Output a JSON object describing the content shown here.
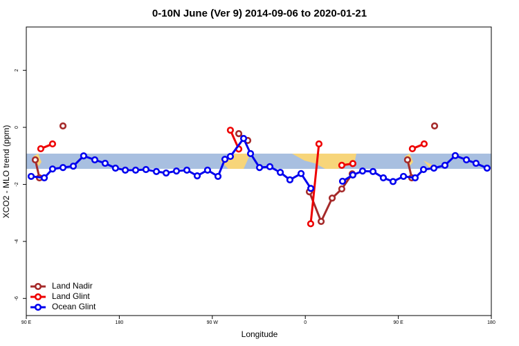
{
  "chart_data": {
    "type": "line",
    "title": "0-10N June (Ver 9)   2014-09-06 to 2020-01-21",
    "x_label": "Longitude",
    "y_label": "XCO2 - MLO trend (ppm)",
    "xlim": [
      90,
      540
    ],
    "ylim": [
      -6.6,
      3.52
    ],
    "xticks": [
      {
        "value": 90,
        "label": "90 E"
      },
      {
        "value": 180,
        "label": "180"
      },
      {
        "value": 270,
        "label": "90 W"
      },
      {
        "value": 360,
        "label": "0"
      },
      {
        "value": 450,
        "label": "90 E"
      },
      {
        "value": 540,
        "label": "180"
      }
    ],
    "yticks": [
      2,
      0,
      -2,
      -4,
      -6
    ],
    "legend": "bottom-left",
    "series": [
      {
        "name": "Land Nadir",
        "color": "#a52a2a",
        "x": [
          98.7,
          102.7,
          null,
          125.5,
          null,
          295.6,
          304.3,
          null,
          363.9,
          375.3,
          386,
          395.3,
          405.4,
          null,
          458.9,
          463,
          null,
          485.1
        ],
        "values": [
          -1.14,
          -1.77,
          null,
          0.05,
          null,
          -0.22,
          -0.46,
          null,
          -2.26,
          -3.3,
          -2.48,
          -2.16,
          -1.63,
          null,
          -1.14,
          -1.77,
          null,
          0.05
        ]
      },
      {
        "name": "Land Glint",
        "color": "#ee0000",
        "x": [
          104,
          115.4,
          null,
          287.5,
          295.6,
          null,
          365.2,
          373.2,
          null,
          395.3,
          406,
          null,
          463.6,
          475
        ],
        "values": [
          -0.75,
          -0.58,
          null,
          -0.1,
          -0.76,
          null,
          -3.38,
          -0.58,
          null,
          -1.33,
          -1.27,
          null,
          -0.75,
          -0.58
        ]
      },
      {
        "name": "Ocean Glint",
        "color": "#0000ee",
        "x": [
          94.7,
          107.4,
          115.4,
          125.5,
          135.5,
          145.5,
          156.3,
          166.3,
          176.3,
          185.8,
          195.8,
          205.8,
          215.9,
          225.3,
          235.3,
          245.4,
          255.4,
          265.4,
          275.5,
          282.2,
          287.5,
          300.3,
          307,
          315.7,
          325.7,
          335.8,
          345.1,
          355.9,
          365.3,
          null,
          396,
          406,
          415.4,
          425.5,
          435.5,
          444.9,
          455,
          466.3,
          474.4,
          484.4,
          495.1,
          505.1,
          515.9,
          525.2,
          535.9
        ],
        "values": [
          -1.72,
          -1.77,
          -1.46,
          -1.41,
          -1.36,
          -1.0,
          -1.14,
          -1.26,
          -1.43,
          -1.5,
          -1.5,
          -1.48,
          -1.55,
          -1.6,
          -1.53,
          -1.5,
          -1.7,
          -1.5,
          -1.72,
          -1.12,
          -1.02,
          -0.39,
          -0.92,
          -1.41,
          -1.38,
          -1.58,
          -1.84,
          -1.62,
          -2.14,
          null,
          -1.89,
          -1.67,
          -1.53,
          -1.55,
          -1.77,
          -1.9,
          -1.72,
          -1.77,
          -1.48,
          -1.43,
          -1.33,
          -0.99,
          -1.14,
          -1.26,
          -1.43
        ]
      }
    ]
  }
}
